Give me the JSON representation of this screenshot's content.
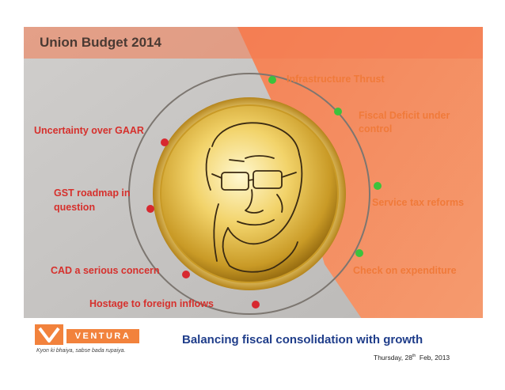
{
  "slide": {
    "title": "Union Budget 2014",
    "tagline": "Balancing fiscal consolidation with growth",
    "date": {
      "prefix": "Thursday, 28",
      "suffix": "th",
      "rest": "  Feb, 2013"
    },
    "logo": {
      "name": "VENTURA",
      "tagline": "Kyon ki bhaiya, sabse bada rupaiya."
    },
    "colors": {
      "orange": "#f58a5a",
      "grey": "#c4c2c0",
      "negative": "#d6302c",
      "positive": "#f07a3a",
      "navy": "#1f3d8a"
    }
  },
  "negatives": [
    {
      "text": "Uncertainty over GAAR"
    },
    {
      "line1": "GST roadmap in",
      "line2": "question"
    },
    {
      "text": "CAD a serious concern"
    },
    {
      "text": "Hostage to foreign inflows"
    }
  ],
  "positives": [
    {
      "text": "Infrastructure Thrust"
    },
    {
      "line1": "Fiscal Deficit under",
      "line2": "control"
    },
    {
      "text": "Service tax reforms"
    },
    {
      "text": "Check on expenditure"
    }
  ]
}
